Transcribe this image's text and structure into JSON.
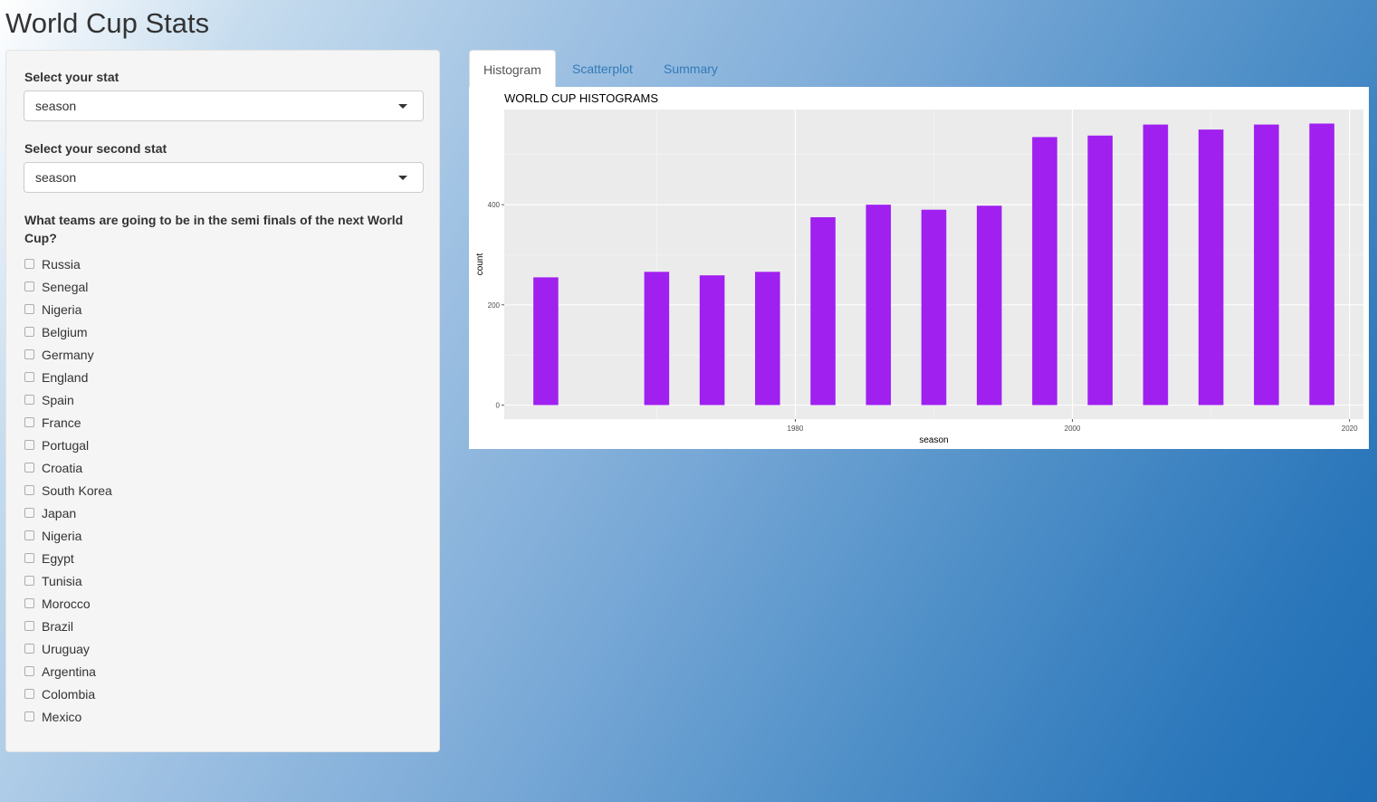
{
  "app": {
    "title": "World Cup Stats"
  },
  "sidebar": {
    "stat1": {
      "label": "Select your stat",
      "value": "season"
    },
    "stat2": {
      "label": "Select your second stat",
      "value": "season"
    },
    "question": "What teams are going to be in the semi finals of the next World Cup?",
    "teams": [
      "Russia",
      "Senegal",
      "Nigeria",
      "Belgium",
      "Germany",
      "England",
      "Spain",
      "France",
      "Portugal",
      "Croatia",
      "South Korea",
      "Japan",
      "Nigeria",
      "Egypt",
      "Tunisia",
      "Morocco",
      "Brazil",
      "Uruguay",
      "Argentina",
      "Colombia",
      "Mexico"
    ]
  },
  "tabs": [
    {
      "label": "Histogram",
      "active": true
    },
    {
      "label": "Scatterplot",
      "active": false
    },
    {
      "label": "Summary",
      "active": false
    }
  ],
  "chart_data": {
    "type": "bar",
    "title": "WORLD CUP HISTOGRAMS",
    "xlabel": "season",
    "ylabel": "count",
    "x": [
      1962,
      1970,
      1974,
      1978,
      1982,
      1986,
      1990,
      1994,
      1998,
      2002,
      2006,
      2010,
      2014,
      2018
    ],
    "values": [
      255,
      266,
      259,
      266,
      375,
      400,
      390,
      398,
      535,
      538,
      560,
      550,
      560,
      562
    ],
    "xticks": [
      "1980",
      "2000",
      "2020"
    ],
    "yticks": [
      "0",
      "200",
      "400"
    ],
    "xlim": [
      1959,
      2021
    ],
    "ylim": [
      -28,
      590
    ],
    "bar_color": "#a020f0",
    "panel_color": "#ebebeb"
  }
}
